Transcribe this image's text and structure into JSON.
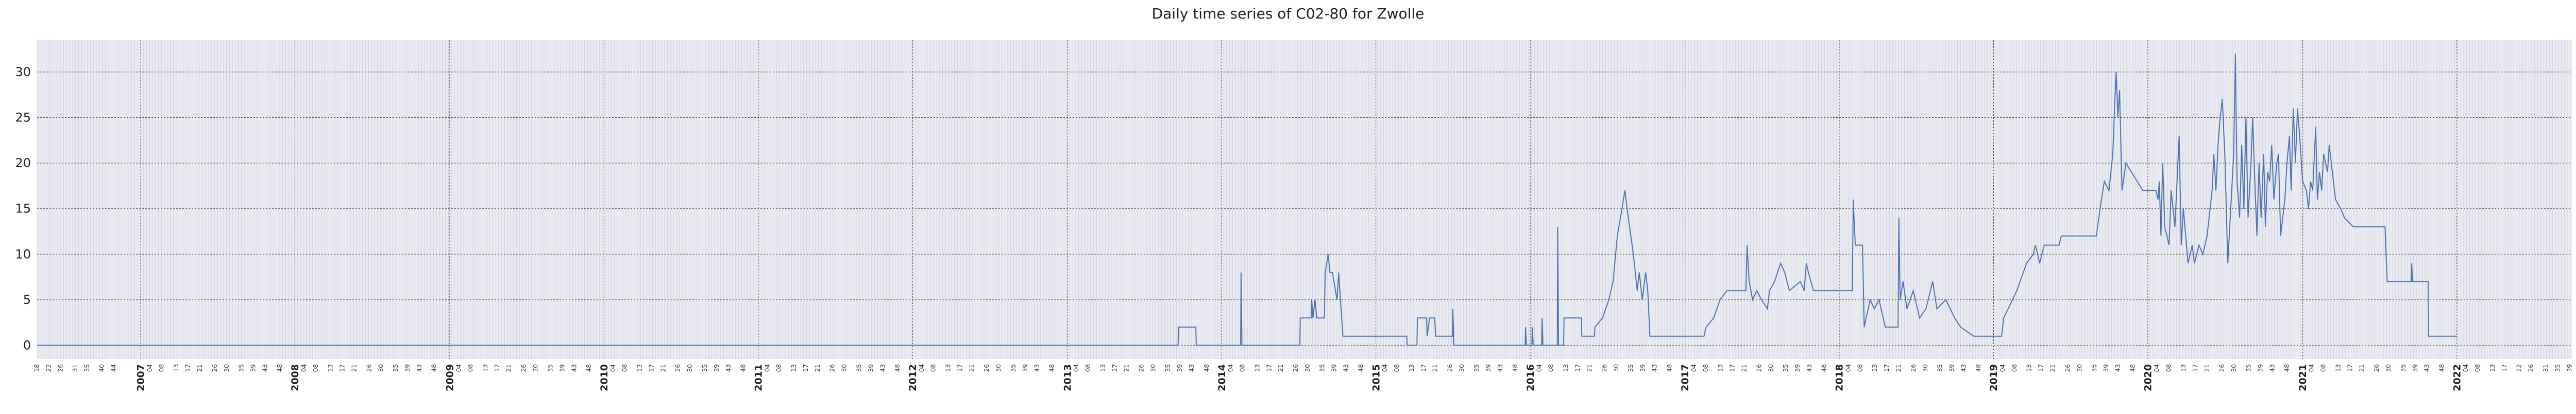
{
  "chart_data": {
    "type": "line",
    "title": "Daily time series of C02-80 for Zwolle",
    "xlabel": "",
    "ylabel": "",
    "x_range": [
      "2006-05-01",
      "2022-09-30"
    ],
    "ylim": [
      -1.5,
      33.5
    ],
    "yticks": [
      0,
      5,
      10,
      15,
      20,
      25,
      30
    ],
    "year_ticks": [
      "2007",
      "2008",
      "2009",
      "2010",
      "2011",
      "2012",
      "2013",
      "2014",
      "2015",
      "2016",
      "2017",
      "2018",
      "2019",
      "2020",
      "2021",
      "2022"
    ],
    "week_ticks": [
      "04",
      "08",
      "13",
      "17",
      "21",
      "26",
      "30",
      "35",
      "39",
      "43",
      "48"
    ],
    "leading_week_ticks": [
      "18",
      "22",
      "26",
      "31",
      "35",
      "40",
      "44"
    ],
    "trailing_week_ticks": [
      "04",
      "08",
      "13",
      "17",
      "22",
      "26",
      "31",
      "35",
      "39"
    ],
    "grid": true,
    "colors": {
      "line": "#4c72b0",
      "background": "#eaeaf2",
      "major_grid": "#444444",
      "minor_grid": "#c8c8d4"
    },
    "series": [
      {
        "points": [
          [
            "2006-05-01",
            0
          ],
          [
            "2013-09-20",
            0
          ],
          [
            "2013-09-21",
            2
          ],
          [
            "2013-11-01",
            2
          ],
          [
            "2013-11-02",
            0
          ],
          [
            "2014-02-15",
            0
          ],
          [
            "2014-02-16",
            8
          ],
          [
            "2014-02-18",
            0
          ],
          [
            "2014-02-19",
            0
          ],
          [
            "2014-07-05",
            0
          ],
          [
            "2014-07-06",
            3
          ],
          [
            "2014-08-01",
            3
          ],
          [
            "2014-08-02",
            5
          ],
          [
            "2014-08-05",
            3
          ],
          [
            "2014-08-10",
            5
          ],
          [
            "2014-08-14",
            3
          ],
          [
            "2014-09-01",
            3
          ],
          [
            "2014-09-03",
            8
          ],
          [
            "2014-09-10",
            10
          ],
          [
            "2014-09-14",
            8
          ],
          [
            "2014-09-20",
            8
          ],
          [
            "2014-10-01",
            5
          ],
          [
            "2014-10-05",
            8
          ],
          [
            "2014-10-09",
            5
          ],
          [
            "2014-10-15",
            1
          ],
          [
            "2015-03-15",
            1
          ],
          [
            "2015-03-16",
            0
          ],
          [
            "2015-04-08",
            0
          ],
          [
            "2015-04-09",
            3
          ],
          [
            "2015-05-01",
            3
          ],
          [
            "2015-05-02",
            1
          ],
          [
            "2015-05-08",
            3
          ],
          [
            "2015-05-20",
            3
          ],
          [
            "2015-05-22",
            1
          ],
          [
            "2015-06-20",
            1
          ],
          [
            "2015-07-01",
            1
          ],
          [
            "2015-07-02",
            4
          ],
          [
            "2015-07-04",
            0
          ],
          [
            "2015-12-20",
            0
          ],
          [
            "2015-12-21",
            2
          ],
          [
            "2015-12-23",
            0
          ],
          [
            "2016-01-05",
            0
          ],
          [
            "2016-01-06",
            2
          ],
          [
            "2016-01-08",
            0
          ],
          [
            "2016-01-28",
            0
          ],
          [
            "2016-01-29",
            3
          ],
          [
            "2016-01-31",
            0
          ],
          [
            "2016-03-05",
            0
          ],
          [
            "2016-03-06",
            13
          ],
          [
            "2016-03-08",
            0
          ],
          [
            "2016-03-20",
            0
          ],
          [
            "2016-03-21",
            3
          ],
          [
            "2016-05-01",
            3
          ],
          [
            "2016-05-02",
            1
          ],
          [
            "2016-06-01",
            1
          ],
          [
            "2016-06-02",
            2
          ],
          [
            "2016-06-20",
            3
          ],
          [
            "2016-07-05",
            5
          ],
          [
            "2016-07-15",
            7
          ],
          [
            "2016-07-25",
            12
          ],
          [
            "2016-08-05",
            15
          ],
          [
            "2016-08-12",
            17
          ],
          [
            "2016-08-20",
            14
          ],
          [
            "2016-09-01",
            10
          ],
          [
            "2016-09-10",
            6
          ],
          [
            "2016-09-15",
            8
          ],
          [
            "2016-09-22",
            5
          ],
          [
            "2016-09-30",
            8
          ],
          [
            "2016-10-05",
            6
          ],
          [
            "2016-10-10",
            1
          ],
          [
            "2017-02-15",
            1
          ],
          [
            "2017-02-20",
            2
          ],
          [
            "2017-03-10",
            3
          ],
          [
            "2017-03-25",
            5
          ],
          [
            "2017-04-10",
            6
          ],
          [
            "2017-05-25",
            6
          ],
          [
            "2017-05-28",
            11
          ],
          [
            "2017-06-02",
            7
          ],
          [
            "2017-06-10",
            5
          ],
          [
            "2017-06-20",
            6
          ],
          [
            "2017-07-01",
            5
          ],
          [
            "2017-07-15",
            4
          ],
          [
            "2017-07-20",
            6
          ],
          [
            "2017-08-01",
            7
          ],
          [
            "2017-08-15",
            9
          ],
          [
            "2017-08-25",
            8
          ],
          [
            "2017-09-05",
            6
          ],
          [
            "2017-10-01",
            7
          ],
          [
            "2017-10-10",
            6
          ],
          [
            "2017-10-15",
            9
          ],
          [
            "2017-10-20",
            8
          ],
          [
            "2017-11-01",
            6
          ],
          [
            "2018-02-01",
            6
          ],
          [
            "2018-02-03",
            16
          ],
          [
            "2018-02-08",
            11
          ],
          [
            "2018-02-25",
            11
          ],
          [
            "2018-03-01",
            2
          ],
          [
            "2018-03-15",
            5
          ],
          [
            "2018-03-25",
            4
          ],
          [
            "2018-04-05",
            5
          ],
          [
            "2018-04-20",
            2
          ],
          [
            "2018-05-20",
            2
          ],
          [
            "2018-05-22",
            14
          ],
          [
            "2018-05-25",
            5
          ],
          [
            "2018-06-01",
            7
          ],
          [
            "2018-06-10",
            4
          ],
          [
            "2018-06-25",
            6
          ],
          [
            "2018-07-10",
            3
          ],
          [
            "2018-07-25",
            4
          ],
          [
            "2018-08-10",
            7
          ],
          [
            "2018-08-20",
            4
          ],
          [
            "2018-09-10",
            5
          ],
          [
            "2018-10-01",
            3
          ],
          [
            "2018-10-15",
            2
          ],
          [
            "2018-11-15",
            1
          ],
          [
            "2019-01-20",
            1
          ],
          [
            "2019-01-25",
            3
          ],
          [
            "2019-02-25",
            6
          ],
          [
            "2019-03-20",
            9
          ],
          [
            "2019-04-05",
            10
          ],
          [
            "2019-04-10",
            11
          ],
          [
            "2019-04-20",
            9
          ],
          [
            "2019-05-01",
            11
          ],
          [
            "2019-06-05",
            11
          ],
          [
            "2019-06-10",
            12
          ],
          [
            "2019-09-01",
            12
          ],
          [
            "2019-09-10",
            15
          ],
          [
            "2019-09-20",
            18
          ],
          [
            "2019-10-01",
            17
          ],
          [
            "2019-10-10",
            21
          ],
          [
            "2019-10-15",
            27
          ],
          [
            "2019-10-18",
            30
          ],
          [
            "2019-10-22",
            25
          ],
          [
            "2019-10-26",
            28
          ],
          [
            "2019-11-01",
            17
          ],
          [
            "2019-11-10",
            20
          ],
          [
            "2019-12-20",
            17
          ],
          [
            "2020-01-20",
            17
          ],
          [
            "2020-01-25",
            16
          ],
          [
            "2020-01-28",
            18
          ],
          [
            "2020-02-01",
            12
          ],
          [
            "2020-02-05",
            20
          ],
          [
            "2020-02-10",
            13
          ],
          [
            "2020-02-20",
            11
          ],
          [
            "2020-02-25",
            17
          ],
          [
            "2020-03-05",
            13
          ],
          [
            "2020-03-15",
            23
          ],
          [
            "2020-03-20",
            11
          ],
          [
            "2020-03-25",
            15
          ],
          [
            "2020-04-05",
            9
          ],
          [
            "2020-04-15",
            11
          ],
          [
            "2020-04-20",
            9
          ],
          [
            "2020-05-01",
            11
          ],
          [
            "2020-05-10",
            10
          ],
          [
            "2020-05-20",
            12
          ],
          [
            "2020-06-01",
            17
          ],
          [
            "2020-06-05",
            21
          ],
          [
            "2020-06-10",
            17
          ],
          [
            "2020-06-15",
            22
          ],
          [
            "2020-06-20",
            25
          ],
          [
            "2020-06-25",
            27
          ],
          [
            "2020-07-01",
            21
          ],
          [
            "2020-07-08",
            9
          ],
          [
            "2020-07-15",
            15
          ],
          [
            "2020-07-22",
            21
          ],
          [
            "2020-07-26",
            32
          ],
          [
            "2020-07-30",
            18
          ],
          [
            "2020-08-05",
            14
          ],
          [
            "2020-08-10",
            22
          ],
          [
            "2020-08-15",
            15
          ],
          [
            "2020-08-20",
            25
          ],
          [
            "2020-08-25",
            14
          ],
          [
            "2020-09-01",
            20
          ],
          [
            "2020-09-05",
            25
          ],
          [
            "2020-09-10",
            18
          ],
          [
            "2020-09-15",
            12
          ],
          [
            "2020-09-20",
            20
          ],
          [
            "2020-09-25",
            14
          ],
          [
            "2020-10-01",
            21
          ],
          [
            "2020-10-05",
            13
          ],
          [
            "2020-10-10",
            19
          ],
          [
            "2020-10-15",
            18
          ],
          [
            "2020-10-20",
            22
          ],
          [
            "2020-10-25",
            16
          ],
          [
            "2020-11-01",
            20
          ],
          [
            "2020-11-05",
            21
          ],
          [
            "2020-11-10",
            12
          ],
          [
            "2020-11-20",
            16
          ],
          [
            "2020-11-25",
            20
          ],
          [
            "2020-12-01",
            23
          ],
          [
            "2020-12-05",
            17
          ],
          [
            "2020-12-10",
            26
          ],
          [
            "2020-12-15",
            20
          ],
          [
            "2020-12-20",
            26
          ],
          [
            "2020-12-25",
            23
          ],
          [
            "2021-01-01",
            18
          ],
          [
            "2021-01-10",
            17
          ],
          [
            "2021-01-15",
            15
          ],
          [
            "2021-01-20",
            18
          ],
          [
            "2021-01-25",
            17
          ],
          [
            "2021-02-01",
            24
          ],
          [
            "2021-02-05",
            16
          ],
          [
            "2021-02-10",
            19
          ],
          [
            "2021-02-15",
            17
          ],
          [
            "2021-02-20",
            21
          ],
          [
            "2021-03-01",
            19
          ],
          [
            "2021-03-05",
            22
          ],
          [
            "2021-03-10",
            20
          ],
          [
            "2021-03-20",
            16
          ],
          [
            "2021-04-01",
            15
          ],
          [
            "2021-04-10",
            14
          ],
          [
            "2021-05-01",
            13
          ],
          [
            "2021-07-15",
            13
          ],
          [
            "2021-07-20",
            7
          ],
          [
            "2021-09-15",
            7
          ],
          [
            "2021-09-16",
            9
          ],
          [
            "2021-09-18",
            7
          ],
          [
            "2021-10-25",
            7
          ],
          [
            "2021-10-26",
            1
          ],
          [
            "2021-12-31",
            1
          ]
        ]
      }
    ]
  }
}
